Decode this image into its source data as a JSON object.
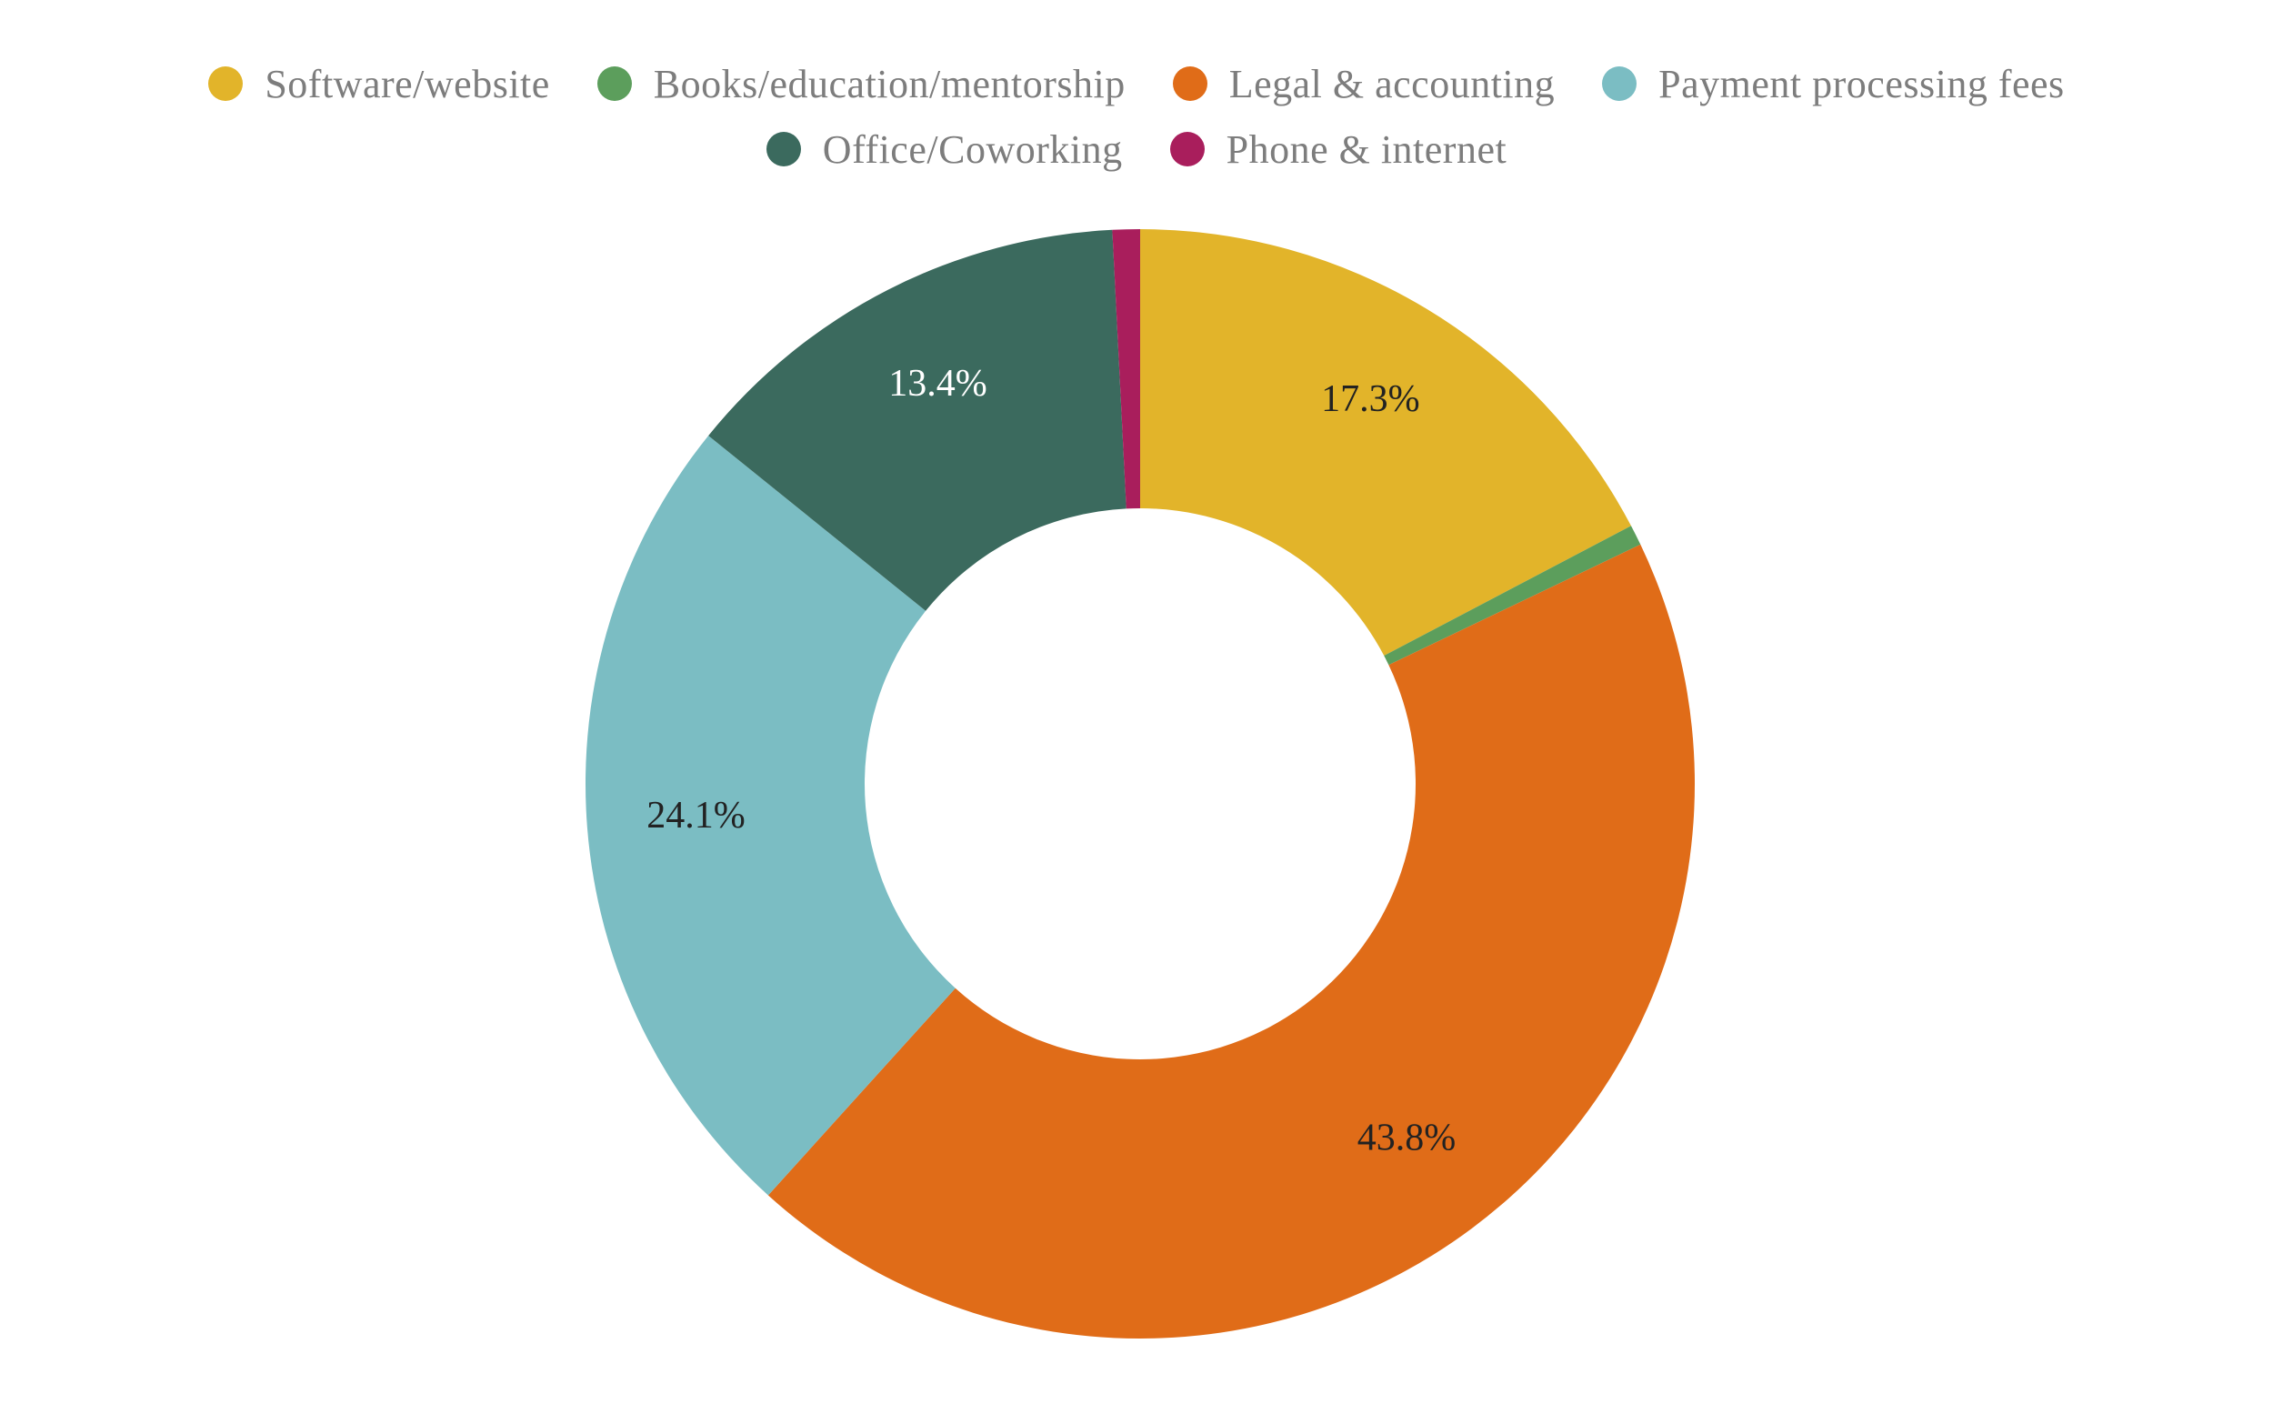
{
  "chart_data": {
    "type": "pie",
    "donut": true,
    "title": "",
    "legend_position": "top",
    "categories": [
      "Software/website",
      "Books/education/mentorship",
      "Legal & accounting",
      "Payment processing fees",
      "Office/Coworking",
      "Phone & internet"
    ],
    "values": [
      17.3,
      0.6,
      43.8,
      24.1,
      13.4,
      0.8
    ],
    "data_labels": [
      "17.3%",
      "",
      "43.8%",
      "24.1%",
      "13.4%",
      ""
    ],
    "colors": [
      "#E2B42A",
      "#5C9E5C",
      "#E06C18",
      "#7BBDC3",
      "#3B6A5E",
      "#A91E5C"
    ],
    "label_colors": [
      "#222222",
      "#222222",
      "#222222",
      "#222222",
      "#ffffff",
      "#ffffff"
    ]
  }
}
